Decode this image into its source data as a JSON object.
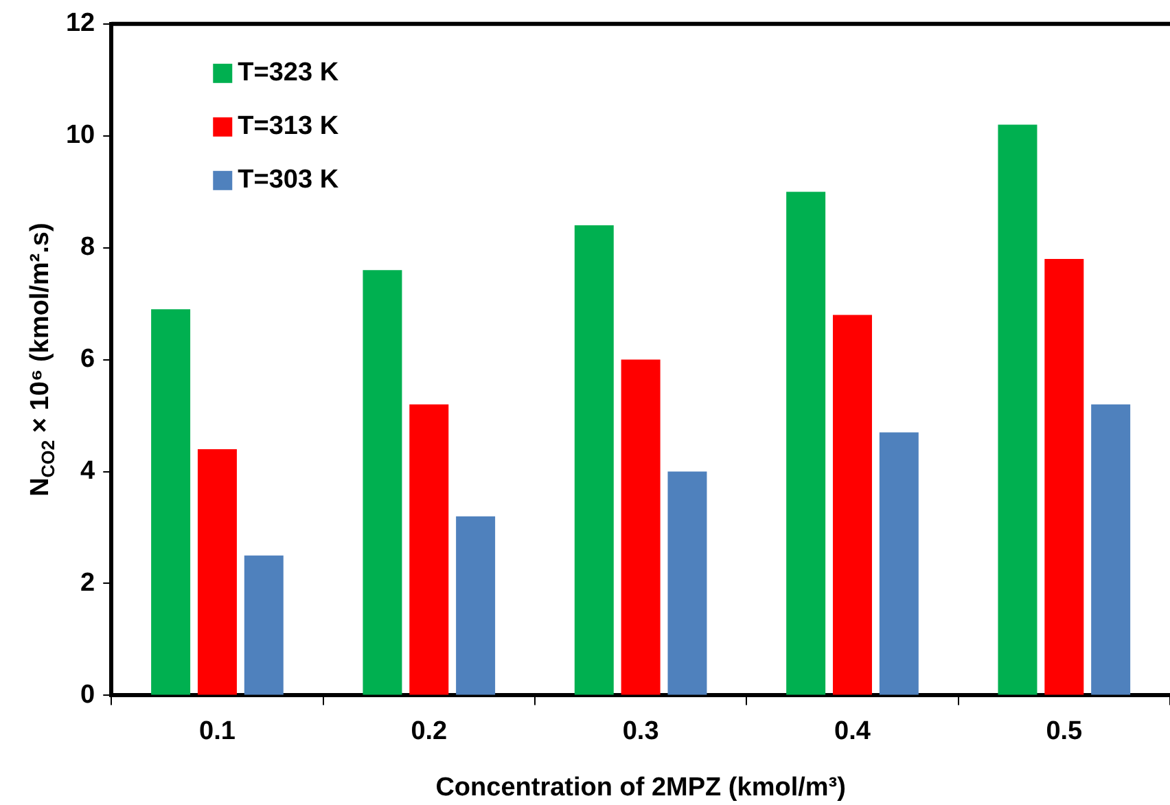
{
  "chart_data": {
    "type": "bar",
    "xlabel": "Concentration of 2MPZ (kmol/m³)",
    "ylabel": "N$_{CO2}$ × 10⁶ (kmol/m².s)",
    "categories": [
      "0.1",
      "0.2",
      "0.3",
      "0.4",
      "0.5"
    ],
    "series": [
      {
        "name": "T=323 K",
        "color": "#00b050",
        "values": [
          6.9,
          7.6,
          8.4,
          9.0,
          10.2
        ]
      },
      {
        "name": "T=313 K",
        "color": "#ff0000",
        "values": [
          4.4,
          5.2,
          6.0,
          6.8,
          7.8
        ]
      },
      {
        "name": "T=303 K",
        "color": "#4f81bd",
        "values": [
          2.5,
          3.2,
          4.0,
          4.7,
          5.2
        ]
      }
    ],
    "ylim": [
      0,
      12
    ],
    "yticks": [
      0,
      2,
      4,
      6,
      8,
      10,
      12
    ],
    "legend": "top left"
  }
}
